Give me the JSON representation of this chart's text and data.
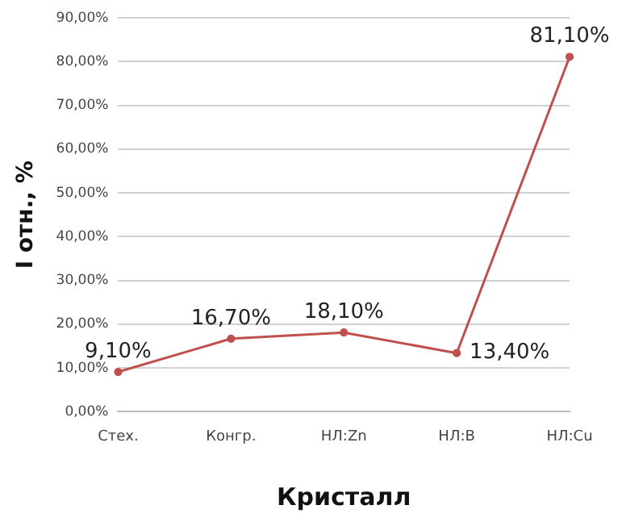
{
  "chart_data": {
    "type": "line",
    "xlabel": "Кристалл",
    "ylabel": "I отн., %",
    "categories": [
      "Стех.",
      "Конгр.",
      "НЛ:Zn",
      "НЛ:B",
      "НЛ:Cu"
    ],
    "series": [
      {
        "color": "#c0504d",
        "values": [
          9.1,
          16.7,
          18.1,
          13.4,
          81.1
        ],
        "value_labels": [
          "9,10%",
          "16,70%",
          "18,10%",
          "13,40%",
          "81,10%"
        ]
      }
    ],
    "ylim": [
      0,
      90
    ],
    "yticks": [
      {
        "value": 0,
        "label": "0,00%"
      },
      {
        "value": 10,
        "label": "10,00%"
      },
      {
        "value": 20,
        "label": "20,00%"
      },
      {
        "value": 30,
        "label": "30,00%"
      },
      {
        "value": 40,
        "label": "40,00%"
      },
      {
        "value": 50,
        "label": "50,00%"
      },
      {
        "value": 60,
        "label": "60,00%"
      },
      {
        "value": 70,
        "label": "70,00%"
      },
      {
        "value": 80,
        "label": "80,00%"
      },
      {
        "value": 90,
        "label": "90,00%"
      }
    ],
    "grid": "y",
    "legend": false,
    "marker": "circle",
    "line_style": "solid"
  }
}
